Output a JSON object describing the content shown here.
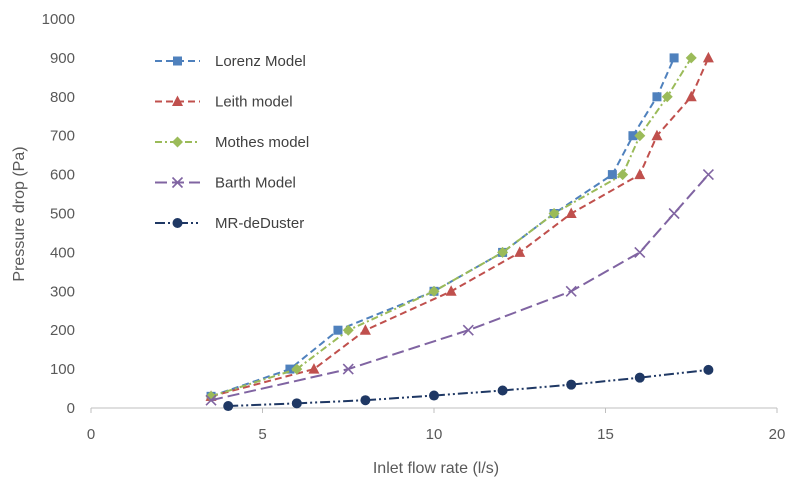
{
  "chart_data": {
    "type": "line",
    "title": "",
    "xlabel": "Inlet flow rate (l/s)",
    "ylabel": "Pressure drop (Pa)",
    "xlim": [
      0,
      20
    ],
    "ylim": [
      0,
      1000
    ],
    "xticks": [
      "0",
      "5",
      "10",
      "15",
      "20"
    ],
    "yticks": [
      "0",
      "100",
      "200",
      "300",
      "400",
      "500",
      "600",
      "700",
      "800",
      "900",
      "1000"
    ],
    "grid": false,
    "legend_position": "top-left",
    "series": [
      {
        "name": "Lorenz Model",
        "color": "#4F81BD",
        "dash": "dashed",
        "marker": "square",
        "x": [
          3.5,
          5.8,
          7.2,
          10,
          12,
          13.5,
          15.2,
          15.8,
          16.5,
          17
        ],
        "y": [
          30,
          100,
          200,
          300,
          400,
          500,
          600,
          700,
          800,
          900
        ]
      },
      {
        "name": "Leith model",
        "color": "#C0504D",
        "dash": "dashed",
        "marker": "triangle",
        "x": [
          3.5,
          6.5,
          8,
          10.5,
          12.5,
          14,
          16,
          16.5,
          17.5,
          18
        ],
        "y": [
          30,
          100,
          200,
          300,
          400,
          500,
          600,
          700,
          800,
          900
        ]
      },
      {
        "name": "Mothes model",
        "color": "#9BBB59",
        "dash": "dashdot",
        "marker": "diamond",
        "x": [
          3.5,
          6,
          7.5,
          10,
          12,
          13.5,
          15.5,
          16,
          16.8,
          17.5
        ],
        "y": [
          30,
          100,
          200,
          300,
          400,
          500,
          600,
          700,
          800,
          900
        ]
      },
      {
        "name": "Barth Model",
        "color": "#8064A2",
        "dash": "longdash",
        "marker": "x",
        "x": [
          3.5,
          7.5,
          11,
          14,
          16,
          17,
          18
        ],
        "y": [
          20,
          100,
          200,
          300,
          400,
          500,
          600
        ]
      },
      {
        "name": "MR-deDuster",
        "color": "#1F3864",
        "dash": "dashdotdot",
        "marker": "circle",
        "x": [
          4,
          6,
          8,
          10,
          12,
          14,
          16,
          18
        ],
        "y": [
          5,
          12,
          20,
          32,
          45,
          60,
          78,
          98
        ]
      }
    ]
  }
}
